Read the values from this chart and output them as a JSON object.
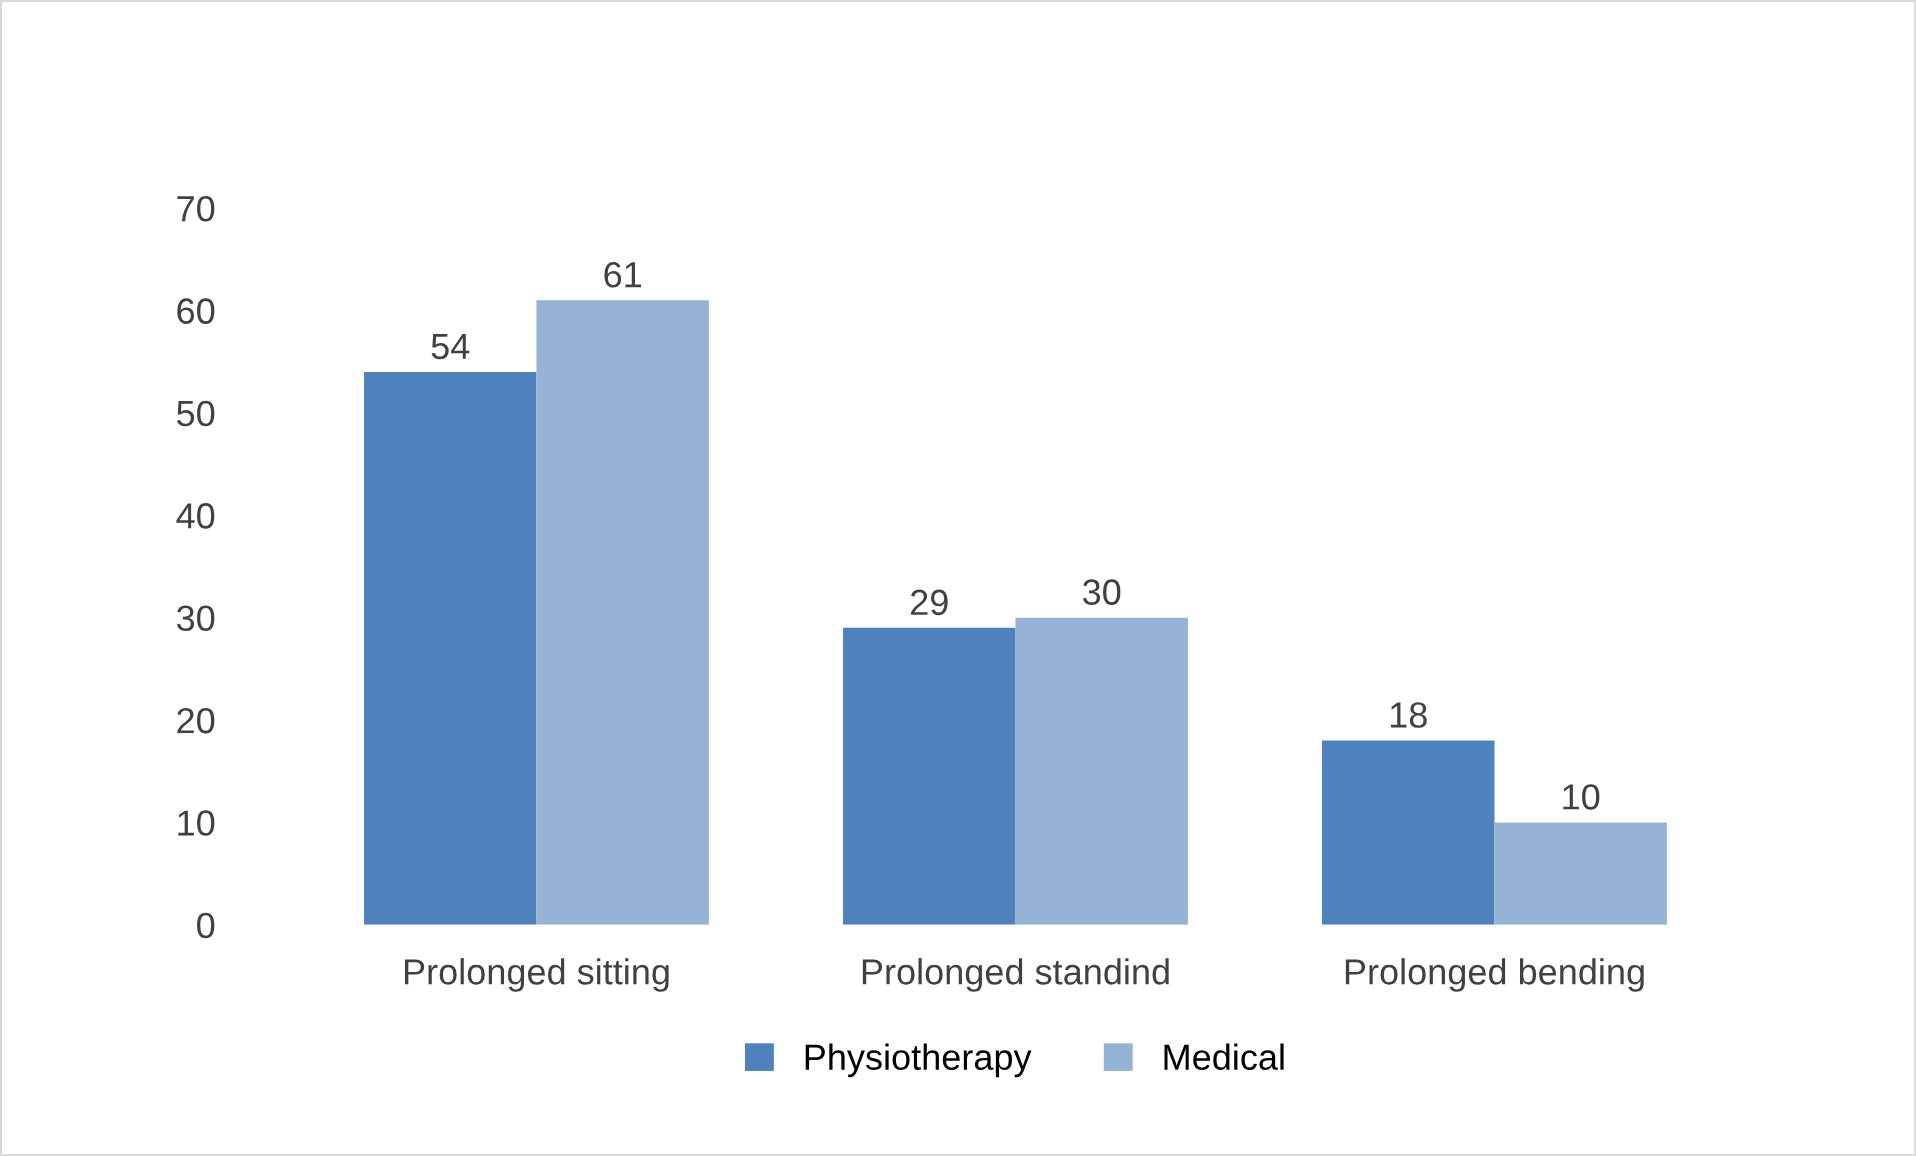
{
  "chart_data": {
    "type": "bar",
    "categories": [
      "Prolonged sitting",
      "Prolonged standind",
      "Prolonged bending"
    ],
    "series": [
      {
        "name": "Physiotherapy",
        "color": "#4f81bd",
        "values": [
          54,
          29,
          18
        ]
      },
      {
        "name": "Medical",
        "color": "#95b3d7",
        "values": [
          61,
          30,
          10
        ]
      }
    ],
    "ylim": [
      0,
      70
    ],
    "yticks": [
      0,
      10,
      20,
      30,
      40,
      50,
      60,
      70
    ],
    "data_labels": true,
    "legend": "bottom",
    "grid": false
  }
}
